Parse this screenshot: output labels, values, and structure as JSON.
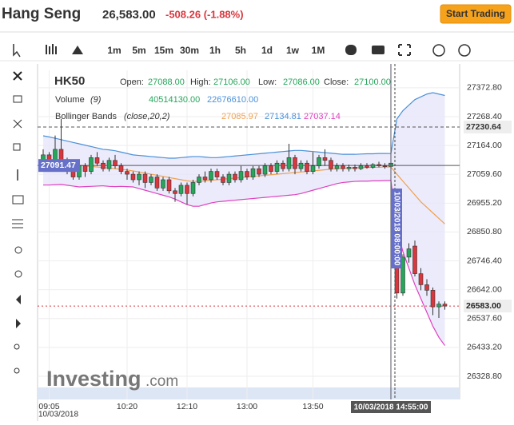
{
  "header": {
    "name": "Hang Seng",
    "price": "26,583.00",
    "change": "-508.26 (-1.88%)",
    "button": "Start Trading"
  },
  "toolbar": {
    "intervals": [
      "1m",
      "5m",
      "15m",
      "30m",
      "1h",
      "5h",
      "1d",
      "1w",
      "1M"
    ]
  },
  "legend": {
    "symbol": "HK50",
    "ohlc": [
      {
        "label": "Open:",
        "value": "27088.00"
      },
      {
        "label": "High:",
        "value": "27106.00"
      },
      {
        "label": "Low:",
        "value": "27086.00"
      },
      {
        "label": "Close:",
        "value": "27100.00"
      }
    ],
    "volume": {
      "label": "Volume",
      "params": "(9)",
      "values": [
        "40514130.00",
        "22676610.00"
      ]
    },
    "bollinger": {
      "label": "Bollinger Bands",
      "params": "(close,20,2)",
      "values": [
        "27085.97",
        "27134.81",
        "27037.14"
      ]
    }
  },
  "logo": {
    "brand": "Investing",
    "suffix": ".com"
  },
  "chart_data": {
    "type": "candlestick",
    "categories": [
      null,
      "09:05",
      null,
      null,
      null,
      null,
      null,
      null,
      null,
      null,
      null,
      null,
      null,
      null,
      "10:20",
      null,
      null,
      null,
      null,
      null,
      null,
      null,
      null,
      null,
      "12:10",
      null,
      null,
      null,
      null,
      null,
      null,
      null,
      null,
      null,
      "13:00",
      null,
      null,
      null,
      null,
      null,
      null,
      null,
      null,
      null,
      null,
      "13:50",
      null,
      null,
      null,
      null,
      null,
      null,
      null,
      null,
      null,
      null,
      null,
      null,
      null,
      null,
      null,
      null,
      null,
      null,
      null,
      null,
      null,
      null
    ],
    "date_label": "10/03/2018",
    "crosshair_label": "10/03/2018 14:55:00",
    "event_label": "10/03/2018 08:00:00",
    "open": [
      27100,
      27130,
      27095,
      27150,
      27110,
      27080,
      27050,
      27090,
      27070,
      27120,
      27100,
      27080,
      27110,
      27090,
      27070,
      27060,
      27040,
      27060,
      27030,
      27050,
      27010,
      27040,
      27000,
      26990,
      27020,
      26990,
      27030,
      27050,
      27040,
      27070,
      27050,
      27030,
      27060,
      27040,
      27070,
      27050,
      27080,
      27060,
      27090,
      27070,
      27100,
      27080,
      27120,
      27080,
      27100,
      27070,
      27090,
      27120,
      27110,
      27080,
      27090,
      27080,
      27085,
      27080,
      27090,
      27085,
      27095,
      27090,
      27088,
      26860,
      26630,
      26760,
      26800,
      26700,
      26660,
      26640,
      26580,
      26590
    ],
    "high": [
      27150,
      27140,
      27200,
      27260,
      27120,
      27090,
      27100,
      27100,
      27130,
      27140,
      27110,
      27120,
      27130,
      27100,
      27080,
      27070,
      27070,
      27070,
      27060,
      27060,
      27050,
      27050,
      27010,
      27030,
      27030,
      27040,
      27060,
      27070,
      27080,
      27080,
      27060,
      27070,
      27070,
      27090,
      27080,
      27090,
      27090,
      27100,
      27100,
      27110,
      27110,
      27170,
      27130,
      27110,
      27110,
      27140,
      27130,
      27150,
      27120,
      27100,
      27100,
      27095,
      27095,
      27100,
      27100,
      27100,
      27105,
      27100,
      27106,
      26870,
      26770,
      26810,
      26820,
      26720,
      26680,
      26650,
      26600,
      26600
    ],
    "low": [
      27090,
      27080,
      27090,
      27100,
      27060,
      27040,
      27040,
      27050,
      27060,
      27090,
      27070,
      27070,
      27080,
      27060,
      27040,
      27030,
      27020,
      27010,
      27020,
      27000,
      27000,
      26990,
      26960,
      26980,
      26950,
      26980,
      27020,
      27030,
      27030,
      27040,
      27020,
      27020,
      27030,
      27030,
      27040,
      27040,
      27050,
      27050,
      27060,
      27060,
      27070,
      27070,
      27060,
      27070,
      27060,
      27060,
      27080,
      27090,
      27070,
      27070,
      27070,
      27070,
      27070,
      27075,
      27080,
      27080,
      27085,
      27080,
      27086,
      26610,
      26620,
      26740,
      26690,
      26640,
      26620,
      26550,
      26540,
      26570
    ],
    "close": [
      27130,
      27095,
      27150,
      27110,
      27080,
      27050,
      27090,
      27070,
      27120,
      27100,
      27080,
      27110,
      27090,
      27070,
      27060,
      27040,
      27060,
      27030,
      27050,
      27010,
      27040,
      27000,
      26990,
      27020,
      26990,
      27030,
      27050,
      27040,
      27070,
      27050,
      27030,
      27060,
      27040,
      27070,
      27050,
      27080,
      27060,
      27090,
      27070,
      27100,
      27080,
      27120,
      27080,
      27100,
      27070,
      27090,
      27120,
      27110,
      27080,
      27090,
      27080,
      27085,
      27080,
      27090,
      27085,
      27095,
      27090,
      27088,
      27100,
      26630,
      26760,
      26790,
      26700,
      26660,
      26640,
      26580,
      26590,
      26583
    ],
    "up_color": "#26a65b",
    "down_color": "#d9363e",
    "series": [
      {
        "color": "#4a90d9",
        "values": [
          27199,
          27195,
          27190,
          27185,
          27180,
          27175,
          27170,
          27165,
          27160,
          27155,
          27150,
          27148,
          27145,
          27140,
          27135,
          27130,
          27128,
          27126,
          27124,
          27122,
          27120,
          27118,
          27118,
          27120,
          27122,
          27124,
          27124,
          27122,
          27120,
          27120,
          27122,
          27124,
          27126,
          27128,
          27130,
          27132,
          27134,
          27136,
          27138,
          27140,
          27142,
          27144,
          27146,
          27146,
          27144,
          27142,
          27140,
          27138,
          27136,
          27134,
          27132,
          27132,
          27132,
          27133,
          27134,
          27134,
          27135,
          27135,
          27134.81,
          27260,
          27290,
          27310,
          27330,
          27340,
          27350,
          27355,
          27350,
          27345
        ]
      },
      {
        "color": "#f0a050",
        "values": [
          27110,
          27108,
          27106,
          27104,
          27100,
          27096,
          27092,
          27090,
          27088,
          27086,
          27084,
          27082,
          27080,
          27078,
          27075,
          27072,
          27068,
          27064,
          27060,
          27056,
          27052,
          27048,
          27044,
          27040,
          27036,
          27034,
          27034,
          27036,
          27038,
          27040,
          27042,
          27044,
          27046,
          27048,
          27050,
          27052,
          27054,
          27056,
          27058,
          27060,
          27062,
          27064,
          27066,
          27068,
          27070,
          27072,
          27074,
          27076,
          27078,
          27080,
          27081,
          27082,
          27083,
          27084,
          27084,
          27085,
          27085,
          27086,
          27085.97,
          27060,
          27035,
          27010,
          26985,
          26960,
          26940,
          26920,
          26900,
          26880
        ]
      },
      {
        "color": "#e040c0",
        "values": [
          27021,
          27021,
          27022,
          27023,
          27020,
          27017,
          27014,
          27015,
          27016,
          27017,
          27018,
          27016,
          27015,
          27016,
          27015,
          27014,
          27008,
          27002,
          26996,
          26990,
          26984,
          26978,
          26970,
          26960,
          26950,
          26944,
          26944,
          26950,
          26956,
          26960,
          26962,
          26964,
          26966,
          26968,
          26970,
          26972,
          26974,
          26976,
          26978,
          26980,
          26982,
          26984,
          26986,
          26990,
          26996,
          27002,
          27008,
          27014,
          27020,
          27026,
          27030,
          27032,
          27034,
          27035,
          27035,
          27036,
          27036,
          27037,
          27037.14,
          26860,
          26780,
          26720,
          26660,
          26610,
          26560,
          26510,
          26470,
          26440
        ]
      }
    ],
    "ylim": [
      26245,
      27436
    ],
    "yticks": [
      {
        "value": 26328.8,
        "label": "26328.80"
      },
      {
        "value": 26433.2,
        "label": "26433.20"
      },
      {
        "value": 26537.6,
        "label": "26537.60"
      },
      {
        "value": 26642,
        "label": "26642.00"
      },
      {
        "value": 26746.4,
        "label": "26746.40"
      },
      {
        "value": 26850.8,
        "label": "26850.80"
      },
      {
        "value": 26955.2,
        "label": "26955.20"
      },
      {
        "value": 27059.6,
        "label": "27059.60"
      },
      {
        "value": 27164,
        "label": "27164.00"
      },
      {
        "value": 27268.4,
        "label": "27268.40"
      },
      {
        "value": 27372.8,
        "label": "27372.80"
      }
    ],
    "grid": true,
    "price_lines": {
      "resistance": 27230.64,
      "crosshair": 27091.47,
      "last": {
        "value": 26583,
        "label": "26583.00"
      }
    }
  }
}
